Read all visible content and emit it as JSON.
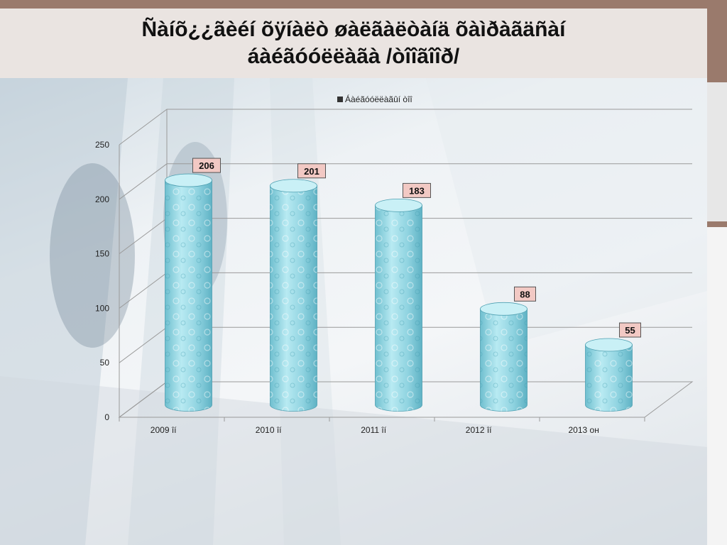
{
  "slide": {
    "title_lines": [
      "Ñàíõ¿¿ãèéí õÿíàëò øàëãàëòàíä õàìðàãäñàí",
      "áàéãóóëëàãà /òîîãîîð/"
    ]
  },
  "chart_data": {
    "type": "bar",
    "style": "3d-cylinder",
    "categories": [
      "2009 îí",
      "2010 îí",
      "2011 îí",
      "2012 îí",
      "2013 он"
    ],
    "series": [
      {
        "name": "Áàéãóóëëàãûí òîî",
        "values": [
          206,
          201,
          183,
          88,
          55
        ],
        "color": "#8fd3e0"
      }
    ],
    "data_labels": [
      "206",
      "201",
      "183",
      "88",
      "55"
    ],
    "y_ticks": [
      "0",
      "50",
      "100",
      "150",
      "200",
      "250"
    ],
    "ylim": [
      0,
      250
    ],
    "grid": true,
    "legend_position": "top",
    "label_box_color": "#f2c9c4"
  }
}
